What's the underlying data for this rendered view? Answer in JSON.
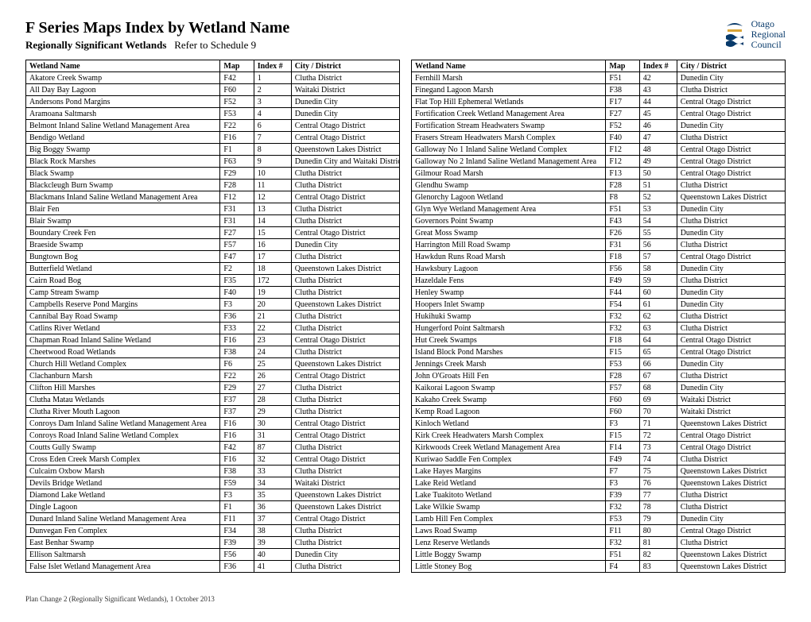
{
  "header": {
    "title": "F Series Maps Index by Wetland Name",
    "subtitle_bold": "Regionally Significant Wetlands",
    "subtitle_rest": "Refer to Schedule 9",
    "logo_text_l1": "Otago",
    "logo_text_l2": "Regional",
    "logo_text_l3": "Council",
    "logo_color_blue": "#083a6b",
    "logo_color_gold": "#d9a436"
  },
  "columns": [
    "Wetland Name",
    "Map",
    "Index #",
    "City / District"
  ],
  "left_rows": [
    [
      "Akatore Creek Swamp",
      "F42",
      "1",
      "Clutha District"
    ],
    [
      "All Day Bay Lagoon",
      "F60",
      "2",
      "Waitaki District"
    ],
    [
      "Andersons Pond Margins",
      "F52",
      "3",
      "Dunedin City"
    ],
    [
      "Aramoana Saltmarsh",
      "F53",
      "4",
      "Dunedin City"
    ],
    [
      "Belmont Inland Saline Wetland Management Area",
      "F22",
      "6",
      "Central Otago District"
    ],
    [
      "Bendigo Wetland",
      "F16",
      "7",
      "Central Otago District"
    ],
    [
      "Big Boggy Swamp",
      "F1",
      "8",
      "Queenstown Lakes District"
    ],
    [
      "Black Rock Marshes",
      "F63",
      "9",
      "Dunedin City and Waitaki District"
    ],
    [
      "Black Swamp",
      "F29",
      "10",
      "Clutha District"
    ],
    [
      "Blackcleugh Burn Swamp",
      "F28",
      "11",
      "Clutha District"
    ],
    [
      "Blackmans Inland Saline Wetland Management Area",
      "F12",
      "12",
      "Central Otago District"
    ],
    [
      "Blair Fen",
      "F31",
      "13",
      "Clutha District"
    ],
    [
      "Blair Swamp",
      "F31",
      "14",
      "Clutha District"
    ],
    [
      "Boundary Creek Fen",
      "F27",
      "15",
      "Central Otago District"
    ],
    [
      "Braeside Swamp",
      "F57",
      "16",
      "Dunedin City"
    ],
    [
      "Bungtown Bog",
      "F47",
      "17",
      "Clutha District"
    ],
    [
      "Butterfield Wetland",
      "F2",
      "18",
      "Queenstown Lakes District"
    ],
    [
      "Cairn Road Bog",
      "F35",
      "172",
      "Clutha District"
    ],
    [
      "Camp Stream Swamp",
      "F40",
      "19",
      "Clutha District"
    ],
    [
      "Campbells Reserve Pond Margins",
      "F3",
      "20",
      "Queenstown Lakes District"
    ],
    [
      "Cannibal Bay Road Swamp",
      "F36",
      "21",
      "Clutha District"
    ],
    [
      "Catlins River Wetland",
      "F33",
      "22",
      "Clutha District"
    ],
    [
      "Chapman Road Inland Saline Wetland",
      "F16",
      "23",
      "Central Otago District"
    ],
    [
      "Cheetwood Road Wetlands",
      "F38",
      "24",
      "Clutha District"
    ],
    [
      "Church Hill Wetland Complex",
      "F6",
      "25",
      "Queenstown Lakes District"
    ],
    [
      "Clachanburn Marsh",
      "F22",
      "26",
      "Central Otago District"
    ],
    [
      "Clifton Hill Marshes",
      "F29",
      "27",
      "Clutha District"
    ],
    [
      "Clutha Matau Wetlands",
      "F37",
      "28",
      "Clutha District"
    ],
    [
      "Clutha River Mouth Lagoon",
      "F37",
      "29",
      "Clutha District"
    ],
    [
      "Conroys Dam Inland Saline Wetland Management Area",
      "F16",
      "30",
      "Central Otago District"
    ],
    [
      "Conroys Road Inland Saline Wetland Complex",
      "F16",
      "31",
      "Central Otago District"
    ],
    [
      "Coutts Gully Swamp",
      "F42",
      "87",
      "Clutha District"
    ],
    [
      "Cross Eden Creek Marsh Complex",
      "F16",
      "32",
      "Central Otago District"
    ],
    [
      "Culcairn Oxbow Marsh",
      "F38",
      "33",
      "Clutha District"
    ],
    [
      "Devils Bridge Wetland",
      "F59",
      "34",
      "Waitaki District"
    ],
    [
      "Diamond Lake Wetland",
      "F3",
      "35",
      "Queenstown Lakes District"
    ],
    [
      "Dingle Lagoon",
      "F1",
      "36",
      "Queenstown Lakes District"
    ],
    [
      "Dunard Inland Saline Wetland Management Area",
      "F11",
      "37",
      "Central Otago District"
    ],
    [
      "Dunvegan Fen Complex",
      "F34",
      "38",
      "Clutha District"
    ],
    [
      "East Benhar Swamp",
      "F39",
      "39",
      "Clutha District"
    ],
    [
      "Ellison Saltmarsh",
      "F56",
      "40",
      "Dunedin City"
    ],
    [
      "False Islet Wetland Management Area",
      "F36",
      "41",
      "Clutha District"
    ]
  ],
  "right_rows": [
    [
      "Fernhill Marsh",
      "F51",
      "42",
      "Dunedin City"
    ],
    [
      "Finegand Lagoon Marsh",
      "F38",
      "43",
      "Clutha District"
    ],
    [
      "Flat Top Hill Ephemeral Wetlands",
      "F17",
      "44",
      "Central Otago District"
    ],
    [
      "Fortification Creek Wetland Management Area",
      "F27",
      "45",
      "Central Otago District"
    ],
    [
      "Fortification Stream Headwaters Swamp",
      "F52",
      "46",
      "Dunedin City"
    ],
    [
      "Frasers Stream Headwaters Marsh Complex",
      "F40",
      "47",
      "Clutha District"
    ],
    [
      "Galloway No 1 Inland Saline Wetland Complex",
      "F12",
      "48",
      "Central Otago District"
    ],
    [
      "Galloway No 2 Inland Saline Wetland  Management Area",
      "F12",
      "49",
      "Central Otago District"
    ],
    [
      "Gilmour Road Marsh",
      "F13",
      "50",
      "Central Otago District"
    ],
    [
      "Glendhu Swamp",
      "F28",
      "51",
      "Clutha District"
    ],
    [
      "Glenorchy Lagoon Wetland",
      "F8",
      "52",
      "Queenstown Lakes District"
    ],
    [
      "Glyn Wye Wetland Management Area",
      "F51",
      "53",
      "Dunedin City"
    ],
    [
      "Governors Point Swamp",
      "F43",
      "54",
      "Clutha District"
    ],
    [
      "Great Moss Swamp",
      "F26",
      "55",
      "Dunedin City"
    ],
    [
      "Harrington Mill Road Swamp",
      "F31",
      "56",
      "Clutha District"
    ],
    [
      "Hawkdun Runs Road Marsh",
      "F18",
      "57",
      "Central Otago District"
    ],
    [
      "Hawksbury Lagoon",
      "F56",
      "58",
      "Dunedin City"
    ],
    [
      "Hazeldale Fens",
      "F49",
      "59",
      "Clutha District"
    ],
    [
      "Henley Swamp",
      "F44",
      "60",
      "Dunedin City"
    ],
    [
      "Hoopers Inlet Swamp",
      "F54",
      "61",
      "Dunedin City"
    ],
    [
      "Hukihuki Swamp",
      "F32",
      "62",
      "Clutha District"
    ],
    [
      "Hungerford Point Saltmarsh",
      "F32",
      "63",
      "Clutha District"
    ],
    [
      "Hut Creek Swamps",
      "F18",
      "64",
      "Central Otago District"
    ],
    [
      "Island Block Pond Marshes",
      "F15",
      "65",
      "Central Otago District"
    ],
    [
      "Jennings Creek Marsh",
      "F53",
      "66",
      "Dunedin City"
    ],
    [
      "John O'Groats Hill Fen",
      "F28",
      "67",
      "Clutha District"
    ],
    [
      "Kaikorai Lagoon Swamp",
      "F57",
      "68",
      "Dunedin City"
    ],
    [
      "Kakaho Creek Swamp",
      "F60",
      "69",
      "Waitaki District"
    ],
    [
      "Kemp Road Lagoon",
      "F60",
      "70",
      "Waitaki District"
    ],
    [
      "Kinloch Wetland",
      "F3",
      "71",
      "Queenstown Lakes District"
    ],
    [
      "Kirk Creek Headwaters Marsh Complex",
      "F15",
      "72",
      "Central Otago District"
    ],
    [
      "Kirkwoods Creek Wetland Management Area",
      "F14",
      "73",
      "Central Otago District"
    ],
    [
      "Kuriwao Saddle Fen Complex",
      "F49",
      "74",
      "Clutha District"
    ],
    [
      "Lake Hayes Margins",
      "F7",
      "75",
      "Queenstown Lakes District"
    ],
    [
      "Lake Reid Wetland",
      "F3",
      "76",
      "Queenstown Lakes District"
    ],
    [
      "Lake Tuakitoto Wetland",
      "F39",
      "77",
      "Clutha District"
    ],
    [
      "Lake Wilkie Swamp",
      "F32",
      "78",
      "Clutha District"
    ],
    [
      "Lamb Hill Fen Complex",
      "F53",
      "79",
      "Dunedin City"
    ],
    [
      "Laws Road Swamp",
      "F11",
      "80",
      "Central Otago District"
    ],
    [
      "Lenz Reserve Wetlands",
      "F32",
      "81",
      "Clutha District"
    ],
    [
      "Little Boggy Swamp",
      "F51",
      "82",
      "Queenstown Lakes District"
    ],
    [
      "Little Stoney Bog",
      "F4",
      "83",
      "Queenstown Lakes District"
    ]
  ],
  "footer": "Plan Change 2 (Regionally Significant Wetlands), 1 October 2013"
}
